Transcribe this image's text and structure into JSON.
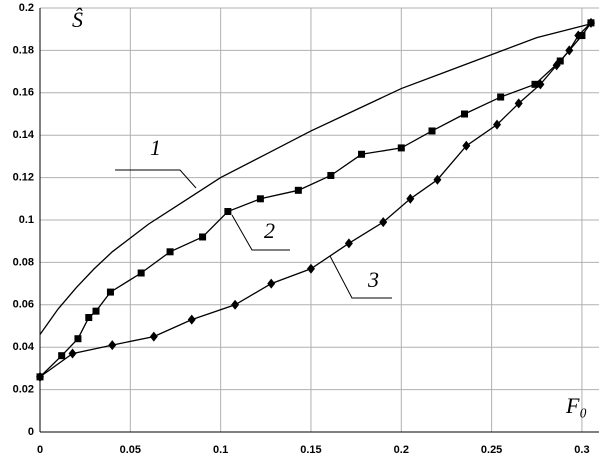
{
  "chart_data": {
    "type": "line",
    "y_label": "Ŝ",
    "x_label": "F₀",
    "xlim": [
      0,
      0.31
    ],
    "ylim": [
      0,
      0.2
    ],
    "xticks": [
      0,
      0.05,
      0.1,
      0.15,
      0.2,
      0.25,
      0.3
    ],
    "yticks": [
      0,
      0.02,
      0.04,
      0.06,
      0.08,
      0.1,
      0.12,
      0.14,
      0.16,
      0.18,
      0.2
    ],
    "grid": true,
    "series": [
      {
        "name": "1",
        "color": "#000000",
        "marker": "none",
        "x": [
          0,
          0.01,
          0.02,
          0.03,
          0.04,
          0.06,
          0.08,
          0.1,
          0.125,
          0.15,
          0.175,
          0.2,
          0.225,
          0.25,
          0.275,
          0.307
        ],
        "values": [
          0.046,
          0.058,
          0.068,
          0.077,
          0.085,
          0.098,
          0.109,
          0.12,
          0.131,
          0.142,
          0.152,
          0.162,
          0.17,
          0.178,
          0.186,
          0.193
        ]
      },
      {
        "name": "2",
        "color": "#000000",
        "marker": "square",
        "x": [
          0,
          0.012,
          0.021,
          0.027,
          0.031,
          0.039,
          0.056,
          0.072,
          0.09,
          0.104,
          0.122,
          0.143,
          0.161,
          0.178,
          0.2,
          0.217,
          0.235,
          0.255,
          0.274,
          0.288,
          0.3,
          0.305
        ],
        "values": [
          0.026,
          0.036,
          0.044,
          0.054,
          0.057,
          0.066,
          0.075,
          0.085,
          0.092,
          0.104,
          0.11,
          0.114,
          0.121,
          0.131,
          0.134,
          0.142,
          0.15,
          0.158,
          0.164,
          0.175,
          0.187,
          0.193
        ]
      },
      {
        "name": "3",
        "color": "#000000",
        "marker": "diamond",
        "x": [
          0,
          0.018,
          0.04,
          0.063,
          0.084,
          0.108,
          0.128,
          0.15,
          0.171,
          0.19,
          0.205,
          0.22,
          0.236,
          0.253,
          0.265,
          0.277,
          0.286,
          0.293,
          0.298,
          0.305
        ],
        "values": [
          0.026,
          0.037,
          0.041,
          0.045,
          0.053,
          0.06,
          0.07,
          0.077,
          0.089,
          0.099,
          0.11,
          0.119,
          0.135,
          0.145,
          0.155,
          0.164,
          0.173,
          0.18,
          0.187,
          0.193
        ]
      }
    ]
  }
}
